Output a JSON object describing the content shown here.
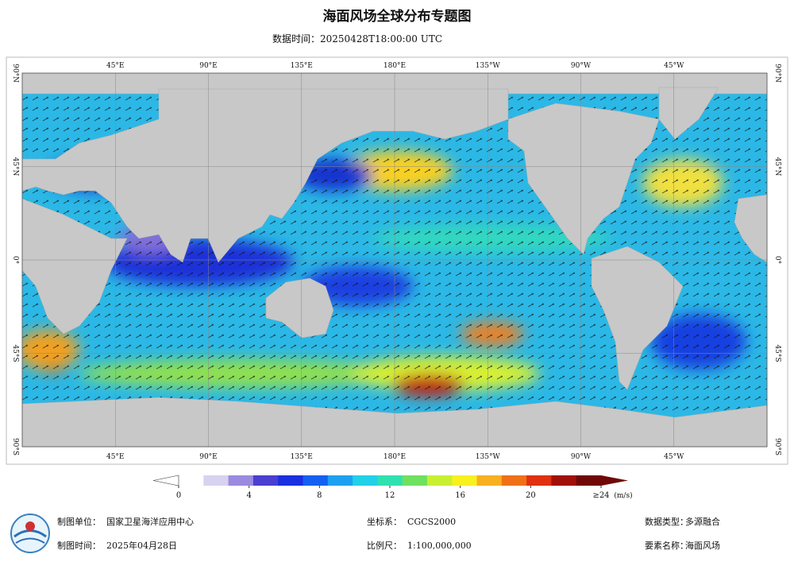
{
  "header": {
    "title": "海面风场全球分布专题图",
    "subtitle": "数据时间：20250428T18:00:00 UTC"
  },
  "map": {
    "lon_labels": [
      "45°E",
      "90°E",
      "135°E",
      "180°E",
      "135°W",
      "90°W",
      "45°W"
    ],
    "lat_labels": [
      "90°N",
      "45°N",
      "0°",
      "45°S",
      "90°S"
    ]
  },
  "legend": {
    "ticks": [
      0,
      4,
      8,
      12,
      16,
      {
        "value": 24,
        "label": "≥24"
      },
      20
    ],
    "unit": "(m/s)",
    "colors": [
      "#ffffff",
      "#d8d2f0",
      "#9a8be0",
      "#4a3fd0",
      "#1a2fe0",
      "#1560f0",
      "#1ea0f0",
      "#22d0e8",
      "#30e0b0",
      "#70e060",
      "#c8f030",
      "#f8f020",
      "#f8b020",
      "#f07018",
      "#e03010",
      "#a01008",
      "#700808"
    ]
  },
  "footer": {
    "items": [
      {
        "label": "制图单位：",
        "value": "国家卫星海洋应用中心"
      },
      {
        "label": "制图时间：",
        "value": "2025年04月28日"
      },
      {
        "label": "坐标系：",
        "value": "CGCS2000"
      },
      {
        "label": "比例尺：",
        "value": "1:100,000,000"
      },
      {
        "label": "数据类型：",
        "value": "多源融合"
      },
      {
        "label": "要素名称：",
        "value": "海面风场"
      }
    ]
  }
}
